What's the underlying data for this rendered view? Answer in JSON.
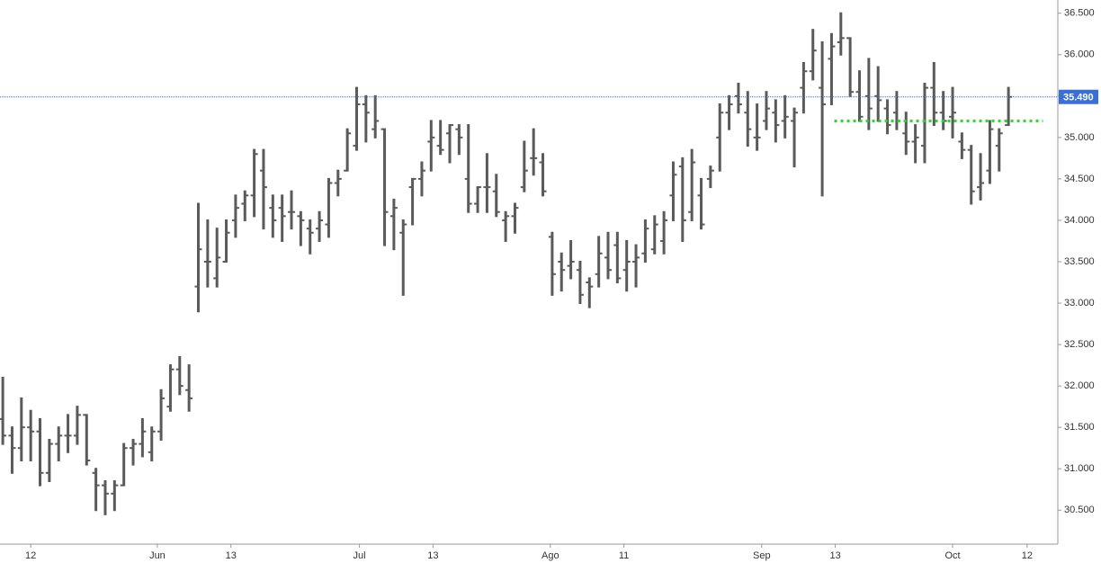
{
  "chart_data": {
    "type": "ohlc",
    "color": "#5a5a5a",
    "x": [
      0,
      1,
      2,
      3,
      4,
      5,
      6,
      7,
      8,
      9,
      10,
      11,
      12,
      13,
      14,
      15,
      16,
      17,
      18,
      19,
      20,
      21,
      22,
      23,
      24,
      25,
      26,
      27,
      28,
      29,
      30,
      31,
      32,
      33,
      34,
      35,
      36,
      37,
      38,
      39,
      40,
      41,
      42,
      43,
      44,
      45,
      46,
      47,
      48,
      49,
      50,
      51,
      52,
      53,
      54,
      55,
      56,
      57,
      58,
      59,
      60,
      61,
      62,
      63,
      64,
      65,
      66,
      67,
      68,
      69,
      70,
      71,
      72,
      73,
      74,
      75,
      76,
      77,
      78,
      79,
      80,
      81,
      82,
      83,
      84,
      85,
      86,
      87,
      88,
      89,
      90,
      91,
      92,
      93,
      94,
      95,
      96,
      97,
      98,
      99,
      100,
      101,
      102,
      103,
      104,
      105,
      106,
      107,
      108
    ],
    "open": [
      31.6,
      31.4,
      31.25,
      31.5,
      31.45,
      30.95,
      31.3,
      31.4,
      31.4,
      31.65,
      30.95,
      30.8,
      30.7,
      30.8,
      31.25,
      31.3,
      31.2,
      31.45,
      31.75,
      32.2,
      31.95,
      33.2,
      33.5,
      33.3,
      33.5,
      34.0,
      34.2,
      34.3,
      34.6,
      34.15,
      34.15,
      34.1,
      34.05,
      33.9,
      33.9,
      33.95,
      34.45,
      34.6,
      34.9,
      35.4,
      35.1,
      35.1,
      34.05,
      33.85,
      34.4,
      34.5,
      34.95,
      34.9,
      35.05,
      35.1,
      34.5,
      34.2,
      34.4,
      34.35,
      34.0,
      34.05,
      34.4,
      34.75,
      34.7,
      33.8,
      33.5,
      33.45,
      33.4,
      33.25,
      33.35,
      33.55,
      33.7,
      33.4,
      33.5,
      33.6,
      33.65,
      33.75,
      34.3,
      34.65,
      34.1,
      34.3,
      34.5,
      35.0,
      35.3,
      35.5,
      35.3,
      35.0,
      35.2,
      35.3,
      35.2,
      35.2,
      35.6,
      35.8,
      35.6,
      35.95,
      36.15,
      36.2,
      35.55,
      35.5,
      35.5,
      35.35,
      35.3,
      35.05,
      34.95,
      34.9,
      35.6,
      35.3,
      35.25,
      34.95,
      34.85,
      34.4,
      34.6,
      34.9,
      35.15
    ],
    "high": [
      32.1,
      31.5,
      31.85,
      31.7,
      31.6,
      31.35,
      31.5,
      31.65,
      31.75,
      31.65,
      31.0,
      30.85,
      30.85,
      31.3,
      31.35,
      31.6,
      31.5,
      31.95,
      32.25,
      32.35,
      32.25,
      34.2,
      34.0,
      33.9,
      34.0,
      34.3,
      34.35,
      34.85,
      34.85,
      34.3,
      34.3,
      34.35,
      34.1,
      34.0,
      34.1,
      34.5,
      34.6,
      35.1,
      35.6,
      35.5,
      35.5,
      35.1,
      34.25,
      34.0,
      34.5,
      34.7,
      35.2,
      35.2,
      35.15,
      35.15,
      35.15,
      34.4,
      34.8,
      34.55,
      34.1,
      34.2,
      34.95,
      35.1,
      34.8,
      33.85,
      33.6,
      33.75,
      33.5,
      33.3,
      33.8,
      33.85,
      33.85,
      33.75,
      33.7,
      34.0,
      34.05,
      34.1,
      34.7,
      34.75,
      34.85,
      34.5,
      34.65,
      35.4,
      35.5,
      35.65,
      35.55,
      35.4,
      35.55,
      35.45,
      35.5,
      35.35,
      35.9,
      36.3,
      36.15,
      36.25,
      36.5,
      36.2,
      35.8,
      35.95,
      35.85,
      35.45,
      35.55,
      35.3,
      35.15,
      35.65,
      35.9,
      35.55,
      35.6,
      35.05,
      34.9,
      34.8,
      35.2,
      35.1,
      35.6
    ],
    "low": [
      31.3,
      30.95,
      31.1,
      31.1,
      30.8,
      30.85,
      31.1,
      31.2,
      31.3,
      31.05,
      30.5,
      30.45,
      30.5,
      30.8,
      31.05,
      31.15,
      31.1,
      31.35,
      31.7,
      31.9,
      31.7,
      32.9,
      33.2,
      33.2,
      33.5,
      33.8,
      34.0,
      34.05,
      33.9,
      33.8,
      33.75,
      33.9,
      33.7,
      33.6,
      33.75,
      33.8,
      34.3,
      34.6,
      34.85,
      34.95,
      35.0,
      33.7,
      33.65,
      33.1,
      33.95,
      34.3,
      34.6,
      34.8,
      34.7,
      34.8,
      34.1,
      34.1,
      34.1,
      34.05,
      33.75,
      33.85,
      34.35,
      34.55,
      34.3,
      33.1,
      33.15,
      33.3,
      33.0,
      32.95,
      33.2,
      33.3,
      33.25,
      33.15,
      33.2,
      33.5,
      33.6,
      33.6,
      34.0,
      33.75,
      34.0,
      33.9,
      34.4,
      34.6,
      35.1,
      35.3,
      34.9,
      34.85,
      35.1,
      34.95,
      35.0,
      34.65,
      35.3,
      35.7,
      34.3,
      35.4,
      36.0,
      35.5,
      35.2,
      35.1,
      35.2,
      35.05,
      35.1,
      34.8,
      34.7,
      34.7,
      35.15,
      35.1,
      35.0,
      34.75,
      34.2,
      34.25,
      34.45,
      34.6,
      35.15
    ],
    "close": [
      31.4,
      31.25,
      31.5,
      31.45,
      30.95,
      31.3,
      31.4,
      31.4,
      31.65,
      31.1,
      30.8,
      30.7,
      30.8,
      31.25,
      31.3,
      31.45,
      31.45,
      31.85,
      32.2,
      32.0,
      31.85,
      33.65,
      33.5,
      33.55,
      33.85,
      34.15,
      34.3,
      34.8,
      34.4,
      34.0,
      34.05,
      34.1,
      34.0,
      33.85,
      34.0,
      34.45,
      34.5,
      35.05,
      35.4,
      35.3,
      35.2,
      34.1,
      34.15,
      33.95,
      34.5,
      34.6,
      35.0,
      34.85,
      35.15,
      35.0,
      34.2,
      34.4,
      34.4,
      34.1,
      34.05,
      34.15,
      34.6,
      34.75,
      34.35,
      33.35,
      33.4,
      33.5,
      33.1,
      33.2,
      33.6,
      33.4,
      33.3,
      33.5,
      33.55,
      33.9,
      33.95,
      34.0,
      34.55,
      34.0,
      34.7,
      33.95,
      34.6,
      35.3,
      35.4,
      35.4,
      35.1,
      35.0,
      35.35,
      35.15,
      35.25,
      35.3,
      35.8,
      36.05,
      35.4,
      36.1,
      36.2,
      35.55,
      35.25,
      35.35,
      35.45,
      35.15,
      35.2,
      34.95,
      35.0,
      35.6,
      35.3,
      35.2,
      35.3,
      34.85,
      34.35,
      34.45,
      35.1,
      35.05,
      35.49
    ],
    "xlim": [
      -0.3,
      113.3
    ],
    "xticks": [
      {
        "value": 3,
        "label": "12"
      },
      {
        "value": 16.6,
        "label": "Jun"
      },
      {
        "value": 24.5,
        "label": "13"
      },
      {
        "value": 38.3,
        "label": "Jul"
      },
      {
        "value": 46.2,
        "label": "13"
      },
      {
        "value": 58.8,
        "label": "Ago"
      },
      {
        "value": 66.7,
        "label": "11"
      },
      {
        "value": 81.5,
        "label": "Sep"
      },
      {
        "value": 89.4,
        "label": "13"
      },
      {
        "value": 102,
        "label": "Oct"
      },
      {
        "value": 110,
        "label": "12"
      }
    ],
    "ylim": [
      30.09,
      36.66
    ],
    "yticks": [
      {
        "value": 30.5,
        "label": "30.500"
      },
      {
        "value": 31,
        "label": "31.000"
      },
      {
        "value": 31.5,
        "label": "31.500"
      },
      {
        "value": 32,
        "label": "32.000"
      },
      {
        "value": 32.5,
        "label": "32.500"
      },
      {
        "value": 33,
        "label": "33.000"
      },
      {
        "value": 33.5,
        "label": "33.500"
      },
      {
        "value": 34,
        "label": "34.000"
      },
      {
        "value": 34.5,
        "label": "34.500"
      },
      {
        "value": 35,
        "label": "35.000"
      },
      {
        "value": 35.5,
        "label": "35.500"
      },
      {
        "value": 36,
        "label": "36.000"
      },
      {
        "value": 36.5,
        "label": "36.500"
      }
    ],
    "last_price": {
      "value": 35.49,
      "label": "35.490",
      "color": "#3a6fd8"
    },
    "support_line": {
      "value": 35.2,
      "x": [
        89.3,
        111.7
      ],
      "color": "#22e022"
    }
  }
}
